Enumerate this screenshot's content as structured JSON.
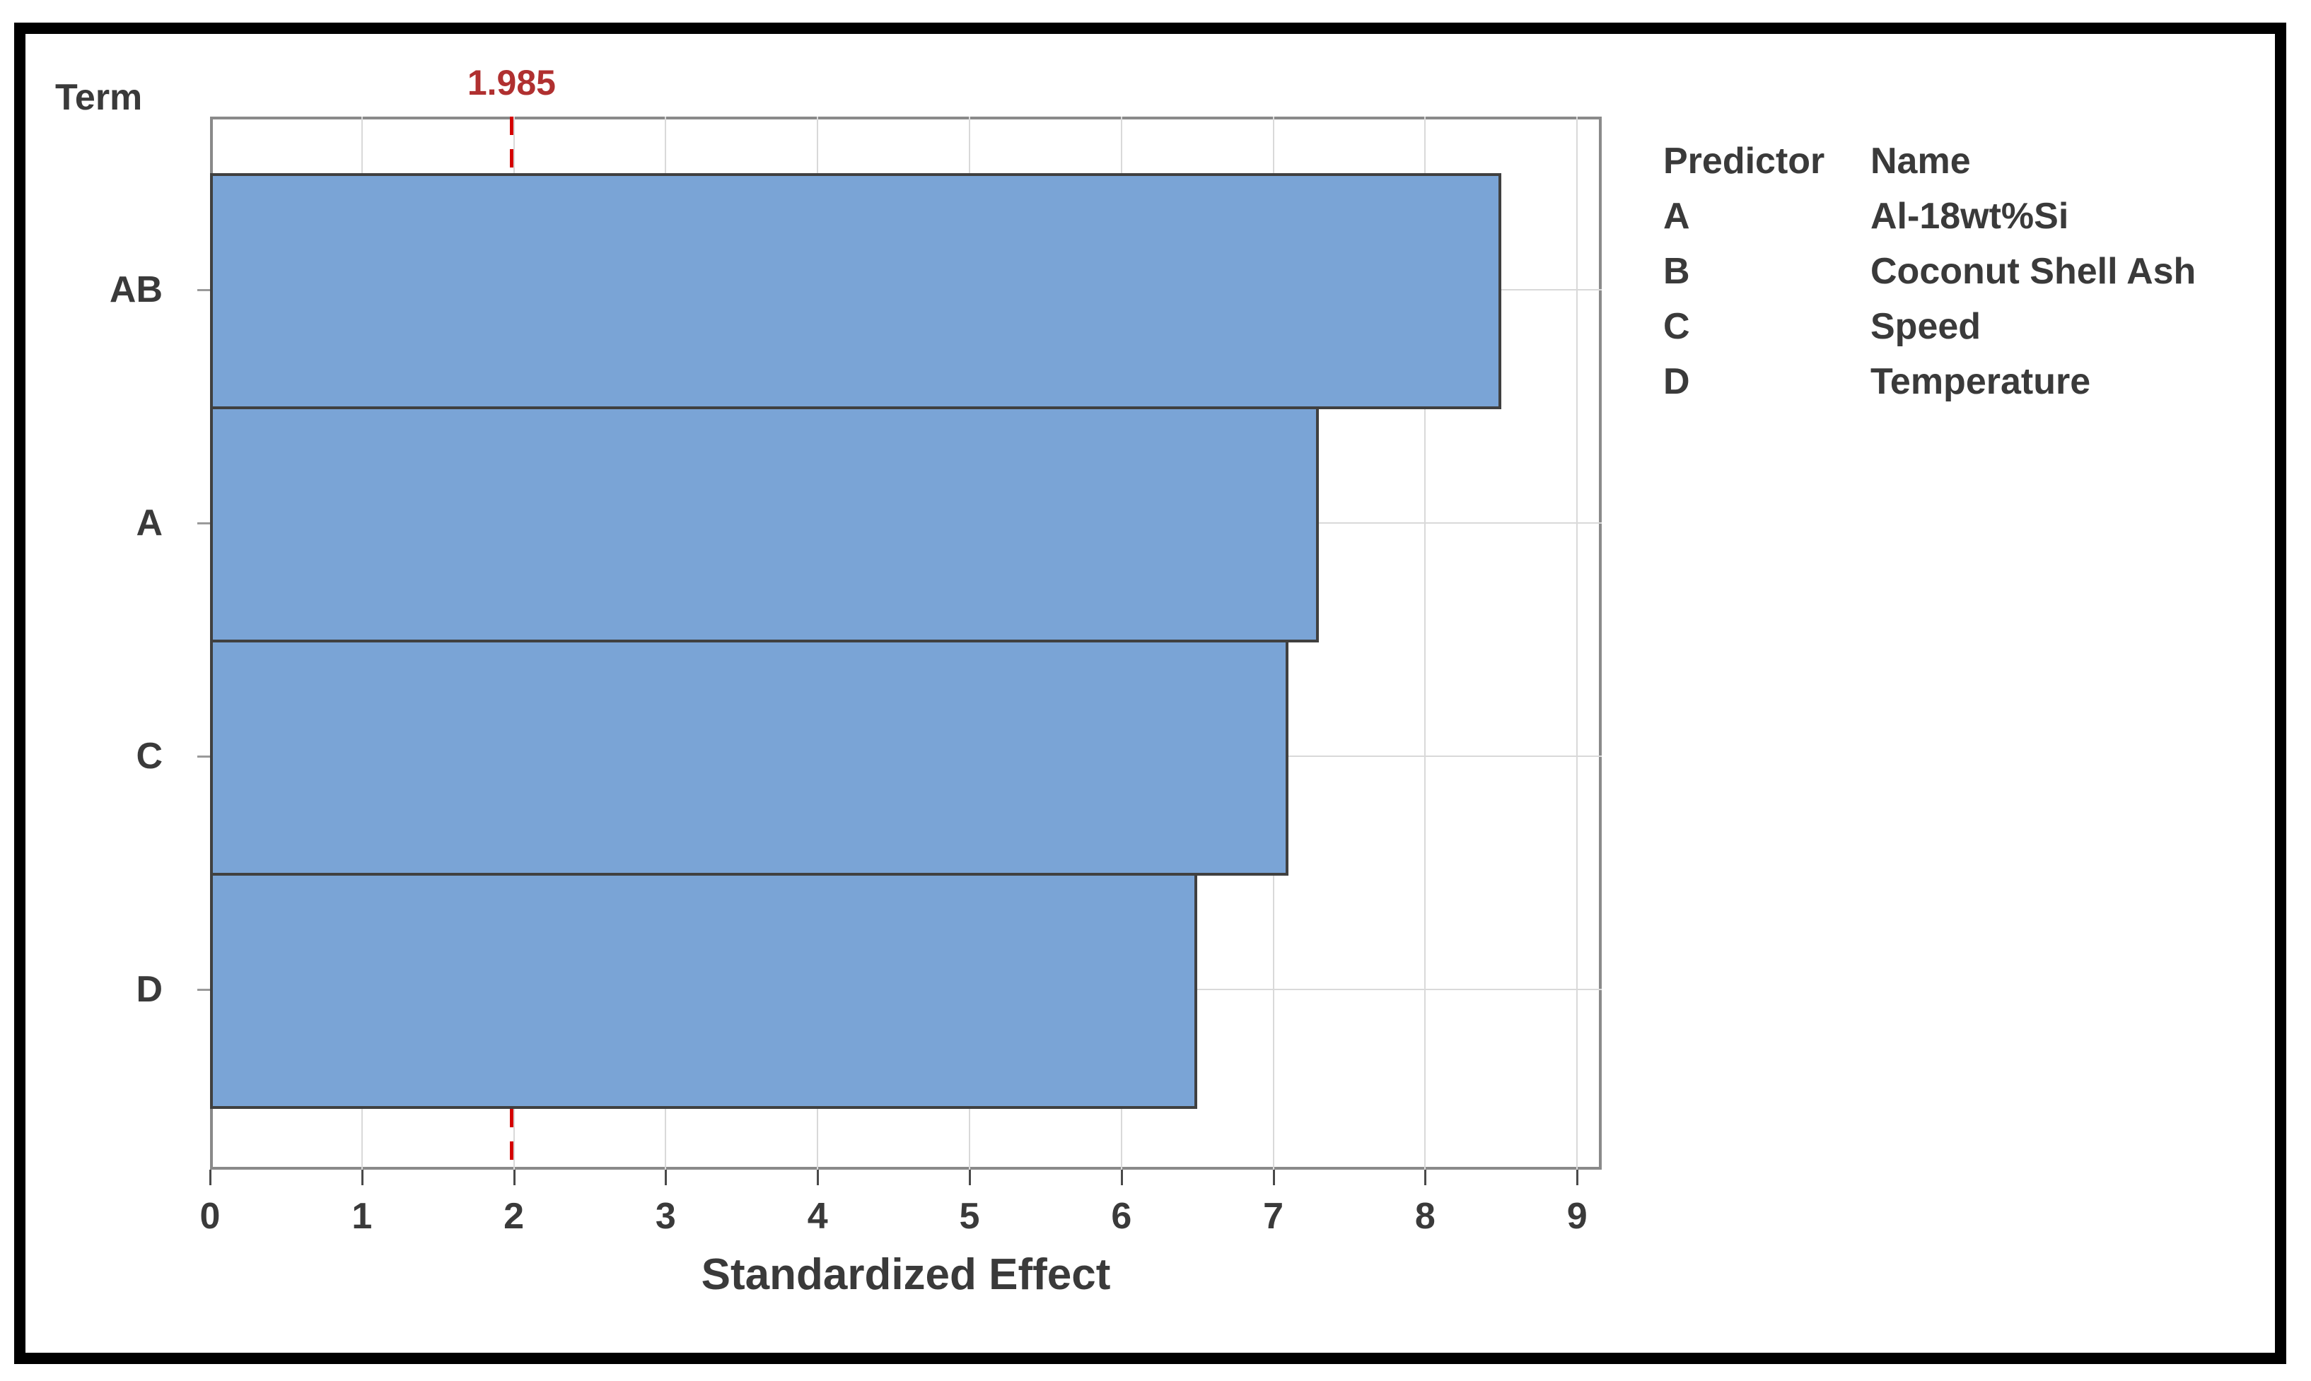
{
  "figure": {
    "corner_label": "Term",
    "background_color": "#FFFFFF",
    "outer_border_color": "#000000",
    "frame_color": "#8A8A8A",
    "gridline_color": "#D9D9D9",
    "text_color": "#3A3A3A"
  },
  "chart_data": {
    "type": "bar",
    "orientation": "horizontal",
    "title": "",
    "categories": [
      "AB",
      "A",
      "C",
      "D"
    ],
    "values": [
      8.5,
      7.3,
      7.1,
      6.5
    ],
    "xlabel": "Standardized Effect",
    "ylabel": "Term",
    "xlim": [
      0,
      9.16
    ],
    "x_ticks": [
      "0",
      "1",
      "2",
      "3",
      "4",
      "5",
      "6",
      "7",
      "8",
      "9"
    ],
    "grid": true,
    "bar_color": "#7AA4D6",
    "bar_edge_color": "#404040",
    "reference_line": {
      "value": 1.985,
      "label": "1.985",
      "style": "dashed",
      "line_color": "#D40000",
      "label_color": "#B03030"
    },
    "legend": {
      "position": "right",
      "headers": {
        "predictor": "Predictor",
        "name": "Name"
      },
      "rows": [
        {
          "predictor": "A",
          "name": "Al-18wt%Si"
        },
        {
          "predictor": "B",
          "name": "Coconut Shell Ash"
        },
        {
          "predictor": "C",
          "name": "Speed"
        },
        {
          "predictor": "D",
          "name": "Temperature"
        }
      ]
    }
  }
}
